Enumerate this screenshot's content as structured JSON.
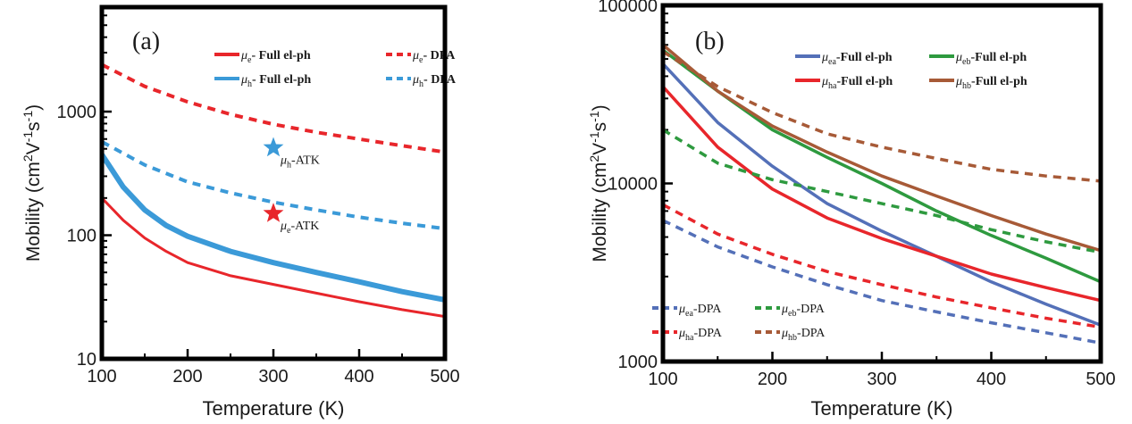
{
  "chart_data": [
    {
      "type": "line",
      "panel_label": "(a)",
      "xlabel": "Temperature (K)",
      "ylabel_parts": [
        "Mobility (cm",
        "2",
        "V",
        "-1",
        "s",
        "-1",
        ")"
      ],
      "xlim": [
        100,
        500
      ],
      "ylim": [
        10,
        7000
      ],
      "yscale": "log",
      "xticks": [
        100,
        200,
        300,
        400,
        500
      ],
      "xtick_labels": [
        "100",
        "200",
        "300",
        "400",
        "500"
      ],
      "yticks": [
        10,
        100,
        1000
      ],
      "ytick_labels": [
        "10",
        "100",
        "1000"
      ],
      "legend_placement": "top",
      "series": [
        {
          "name": "μe- Full el-ph",
          "sym": "μ",
          "sub": "e",
          "rest": "- Full el-ph",
          "color": "#e8262b",
          "dash": false,
          "width": 3,
          "x": [
            100,
            125,
            150,
            175,
            200,
            250,
            300,
            350,
            400,
            450,
            500
          ],
          "y": [
            200,
            132,
            95,
            74,
            60,
            47,
            40,
            34,
            29,
            25,
            22
          ]
        },
        {
          "name": "μh- Full el-ph",
          "sym": "μ",
          "sub": "h",
          "rest": "- Full el-ph",
          "color": "#3b9ad8",
          "dash": false,
          "width": 6,
          "x": [
            100,
            125,
            150,
            175,
            200,
            250,
            300,
            350,
            400,
            450,
            500
          ],
          "y": [
            450,
            245,
            160,
            120,
            98,
            74,
            60,
            50,
            42,
            35,
            30
          ]
        },
        {
          "name": "μe- DPA",
          "sym": "μ",
          "sub": "e",
          "rest": "- DPA",
          "color": "#e8262b",
          "dash": true,
          "width": 4,
          "x": [
            100,
            150,
            200,
            250,
            300,
            350,
            400,
            450,
            500
          ],
          "y": [
            2400,
            1600,
            1200,
            950,
            790,
            680,
            600,
            530,
            470
          ]
        },
        {
          "name": "μh- DPA",
          "sym": "μ",
          "sub": "h",
          "rest": "- DPA",
          "color": "#3b9ad8",
          "dash": true,
          "width": 4,
          "x": [
            100,
            150,
            200,
            250,
            300,
            350,
            400,
            450,
            500
          ],
          "y": [
            570,
            370,
            270,
            220,
            185,
            160,
            140,
            125,
            113
          ]
        }
      ],
      "markers": [
        {
          "name": "μh-ATK",
          "sym": "μ",
          "sub": "h",
          "rest": "-ATK",
          "x": 300,
          "y": 510,
          "color": "#3b9ad8"
        },
        {
          "name": "μe-ATK",
          "sym": "μ",
          "sub": "e",
          "rest": "-ATK",
          "x": 300,
          "y": 150,
          "color": "#e8262b"
        }
      ]
    },
    {
      "type": "line",
      "panel_label": "(b)",
      "xlabel": "Temperature (K)",
      "ylabel_parts": [
        "Mobility (cm",
        "2",
        "V",
        "-1",
        "s",
        "-1",
        ")"
      ],
      "xlim": [
        100,
        500
      ],
      "ylim": [
        1000,
        100000
      ],
      "yscale": "log",
      "xticks": [
        100,
        200,
        300,
        400,
        500
      ],
      "xtick_labels": [
        "100",
        "200",
        "300",
        "400",
        "500"
      ],
      "yticks": [
        1000,
        10000,
        100000
      ],
      "ytick_labels": [
        "1000",
        "10000",
        "100000"
      ],
      "legend_placement": "top-right and bottom-left",
      "series": [
        {
          "name": "μea-Full el-ph",
          "sym": "μ",
          "sub": "ea",
          "rest": "-Full el-ph",
          "color": "#5470b8",
          "dash": false,
          "width": 3.5,
          "x": [
            100,
            150,
            200,
            250,
            300,
            350,
            400,
            450,
            500
          ],
          "y": [
            47000,
            22000,
            12500,
            7700,
            5400,
            3900,
            2800,
            2100,
            1600
          ]
        },
        {
          "name": "μeb-Full el-ph",
          "sym": "μ",
          "sub": "eb",
          "rest": "-Full el-ph",
          "color": "#2e9a3f",
          "dash": false,
          "width": 3.5,
          "x": [
            100,
            150,
            200,
            250,
            300,
            350,
            400,
            450,
            500
          ],
          "y": [
            56000,
            33000,
            20000,
            14000,
            10000,
            7000,
            5100,
            3800,
            2800
          ]
        },
        {
          "name": "μha-Full el-ph",
          "sym": "μ",
          "sub": "ha",
          "rest": "-Full el-ph",
          "color": "#e8262b",
          "dash": false,
          "width": 3.5,
          "x": [
            100,
            150,
            200,
            250,
            300,
            350,
            400,
            450,
            500
          ],
          "y": [
            35000,
            16000,
            9300,
            6400,
            4900,
            3900,
            3100,
            2600,
            2200
          ]
        },
        {
          "name": "μhb-Full el-ph",
          "sym": "μ",
          "sub": "hb",
          "rest": "-Full el-ph",
          "color": "#a75a37",
          "dash": false,
          "width": 3.5,
          "x": [
            100,
            150,
            200,
            250,
            300,
            350,
            400,
            450,
            500
          ],
          "y": [
            60000,
            33000,
            21000,
            15000,
            11000,
            8500,
            6600,
            5200,
            4200
          ]
        },
        {
          "name": "μea-DPA",
          "sym": "μ",
          "sub": "ea",
          "rest": "-DPA",
          "color": "#5470b8",
          "dash": true,
          "width": 3.5,
          "x": [
            100,
            150,
            200,
            250,
            300,
            350,
            400,
            450,
            500
          ],
          "y": [
            6200,
            4400,
            3400,
            2700,
            2200,
            1900,
            1650,
            1450,
            1270
          ]
        },
        {
          "name": "μeb-DPA",
          "sym": "μ",
          "sub": "eb",
          "rest": "-DPA",
          "color": "#2e9a3f",
          "dash": true,
          "width": 3.5,
          "x": [
            100,
            150,
            200,
            250,
            300,
            350,
            400,
            450,
            500
          ],
          "y": [
            20000,
            13000,
            10500,
            9000,
            7700,
            6600,
            5500,
            4700,
            4100
          ]
        },
        {
          "name": "μha-DPA",
          "sym": "μ",
          "sub": "ha",
          "rest": "-DPA",
          "color": "#e8262b",
          "dash": true,
          "width": 3.5,
          "x": [
            100,
            150,
            200,
            250,
            300,
            350,
            400,
            450,
            500
          ],
          "y": [
            7600,
            5200,
            4000,
            3200,
            2700,
            2300,
            2000,
            1750,
            1560
          ]
        },
        {
          "name": "μhb-DPA",
          "sym": "μ",
          "sub": "hb",
          "rest": "-DPA",
          "color": "#a75a37",
          "dash": true,
          "width": 3.5,
          "x": [
            100,
            150,
            200,
            250,
            300,
            350,
            400,
            450,
            500
          ],
          "y": [
            55000,
            35000,
            25000,
            19000,
            16000,
            13800,
            12000,
            11000,
            10300
          ]
        }
      ],
      "markers": []
    }
  ]
}
